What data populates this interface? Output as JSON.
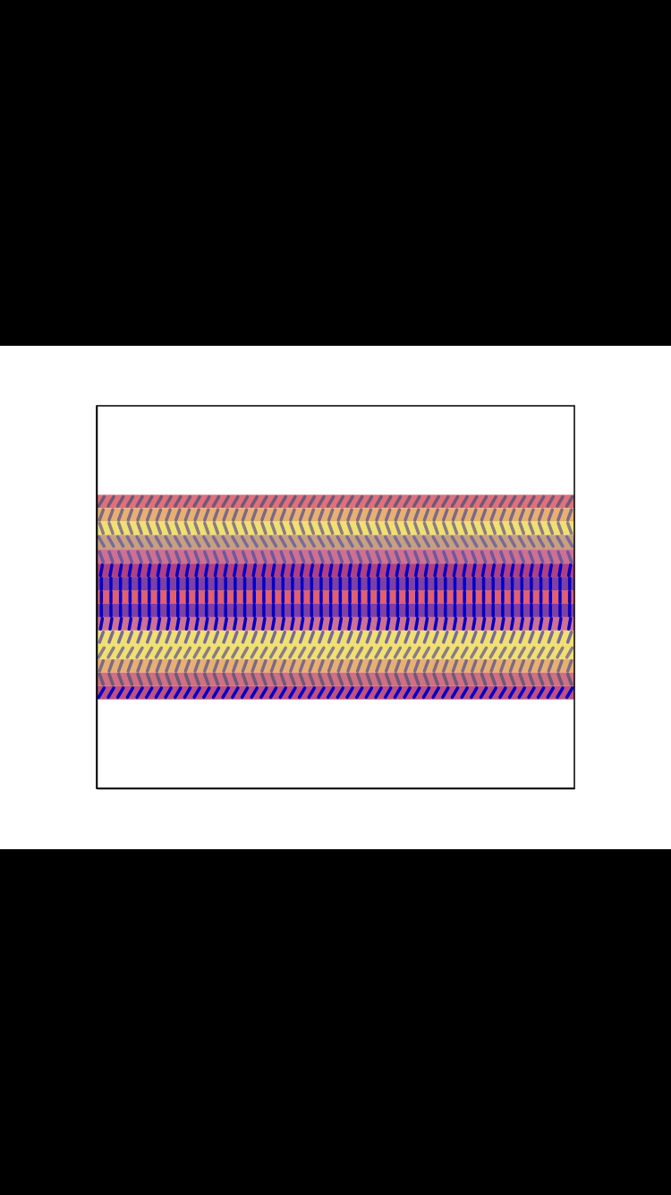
{
  "chart_data": {
    "type": "quiver",
    "xlim": [
      0,
      1
    ],
    "ylim": [
      -1,
      1
    ],
    "tick_labels": false,
    "grid": false,
    "x": [
      0.01,
      0.03,
      0.05,
      0.07,
      0.09,
      0.11,
      0.13,
      0.15,
      0.17,
      0.19,
      0.21,
      0.23,
      0.25,
      0.27,
      0.29,
      0.31,
      0.33,
      0.35,
      0.37,
      0.39,
      0.41,
      0.43,
      0.45,
      0.47,
      0.49,
      0.51,
      0.53,
      0.55,
      0.57,
      0.59,
      0.61,
      0.63,
      0.65,
      0.67,
      0.69,
      0.71,
      0.73,
      0.75,
      0.77,
      0.79,
      0.81,
      0.83,
      0.85,
      0.87,
      0.89,
      0.91,
      0.93,
      0.95,
      0.97,
      0.99
    ],
    "y": [
      0.5,
      0.43,
      0.36,
      0.29,
      0.21,
      0.14,
      0.07,
      0,
      -0.07,
      -0.14,
      -0.21,
      -0.29,
      -0.36,
      -0.43,
      -0.5
    ],
    "angles": [
      60,
      70,
      110,
      120,
      110,
      80,
      90,
      90,
      90,
      80,
      70,
      60,
      70,
      110,
      60
    ],
    "colors": [
      "#6a5a7a",
      "#7a6a8a",
      "#8a7a8a",
      "#7a6a9a",
      "#6a5aa0",
      "#0000c8",
      "#0000c8",
      "#0000c8",
      "#0000c8",
      "#0000c8",
      "#7a6a9a",
      "#8a7a8a",
      "#7a6a8a",
      "#6a5a7a",
      "#0000c8"
    ],
    "background_colors": [
      "#e0707a",
      "#e8b070",
      "#f0e070",
      "#c8a080",
      "#d07090",
      "#b04080",
      "#8040a0",
      "#e06070",
      "#8040a0",
      "#d07090",
      "#f0e070",
      "#f0e070",
      "#e8b070",
      "#d07080",
      "#c05080"
    ]
  }
}
